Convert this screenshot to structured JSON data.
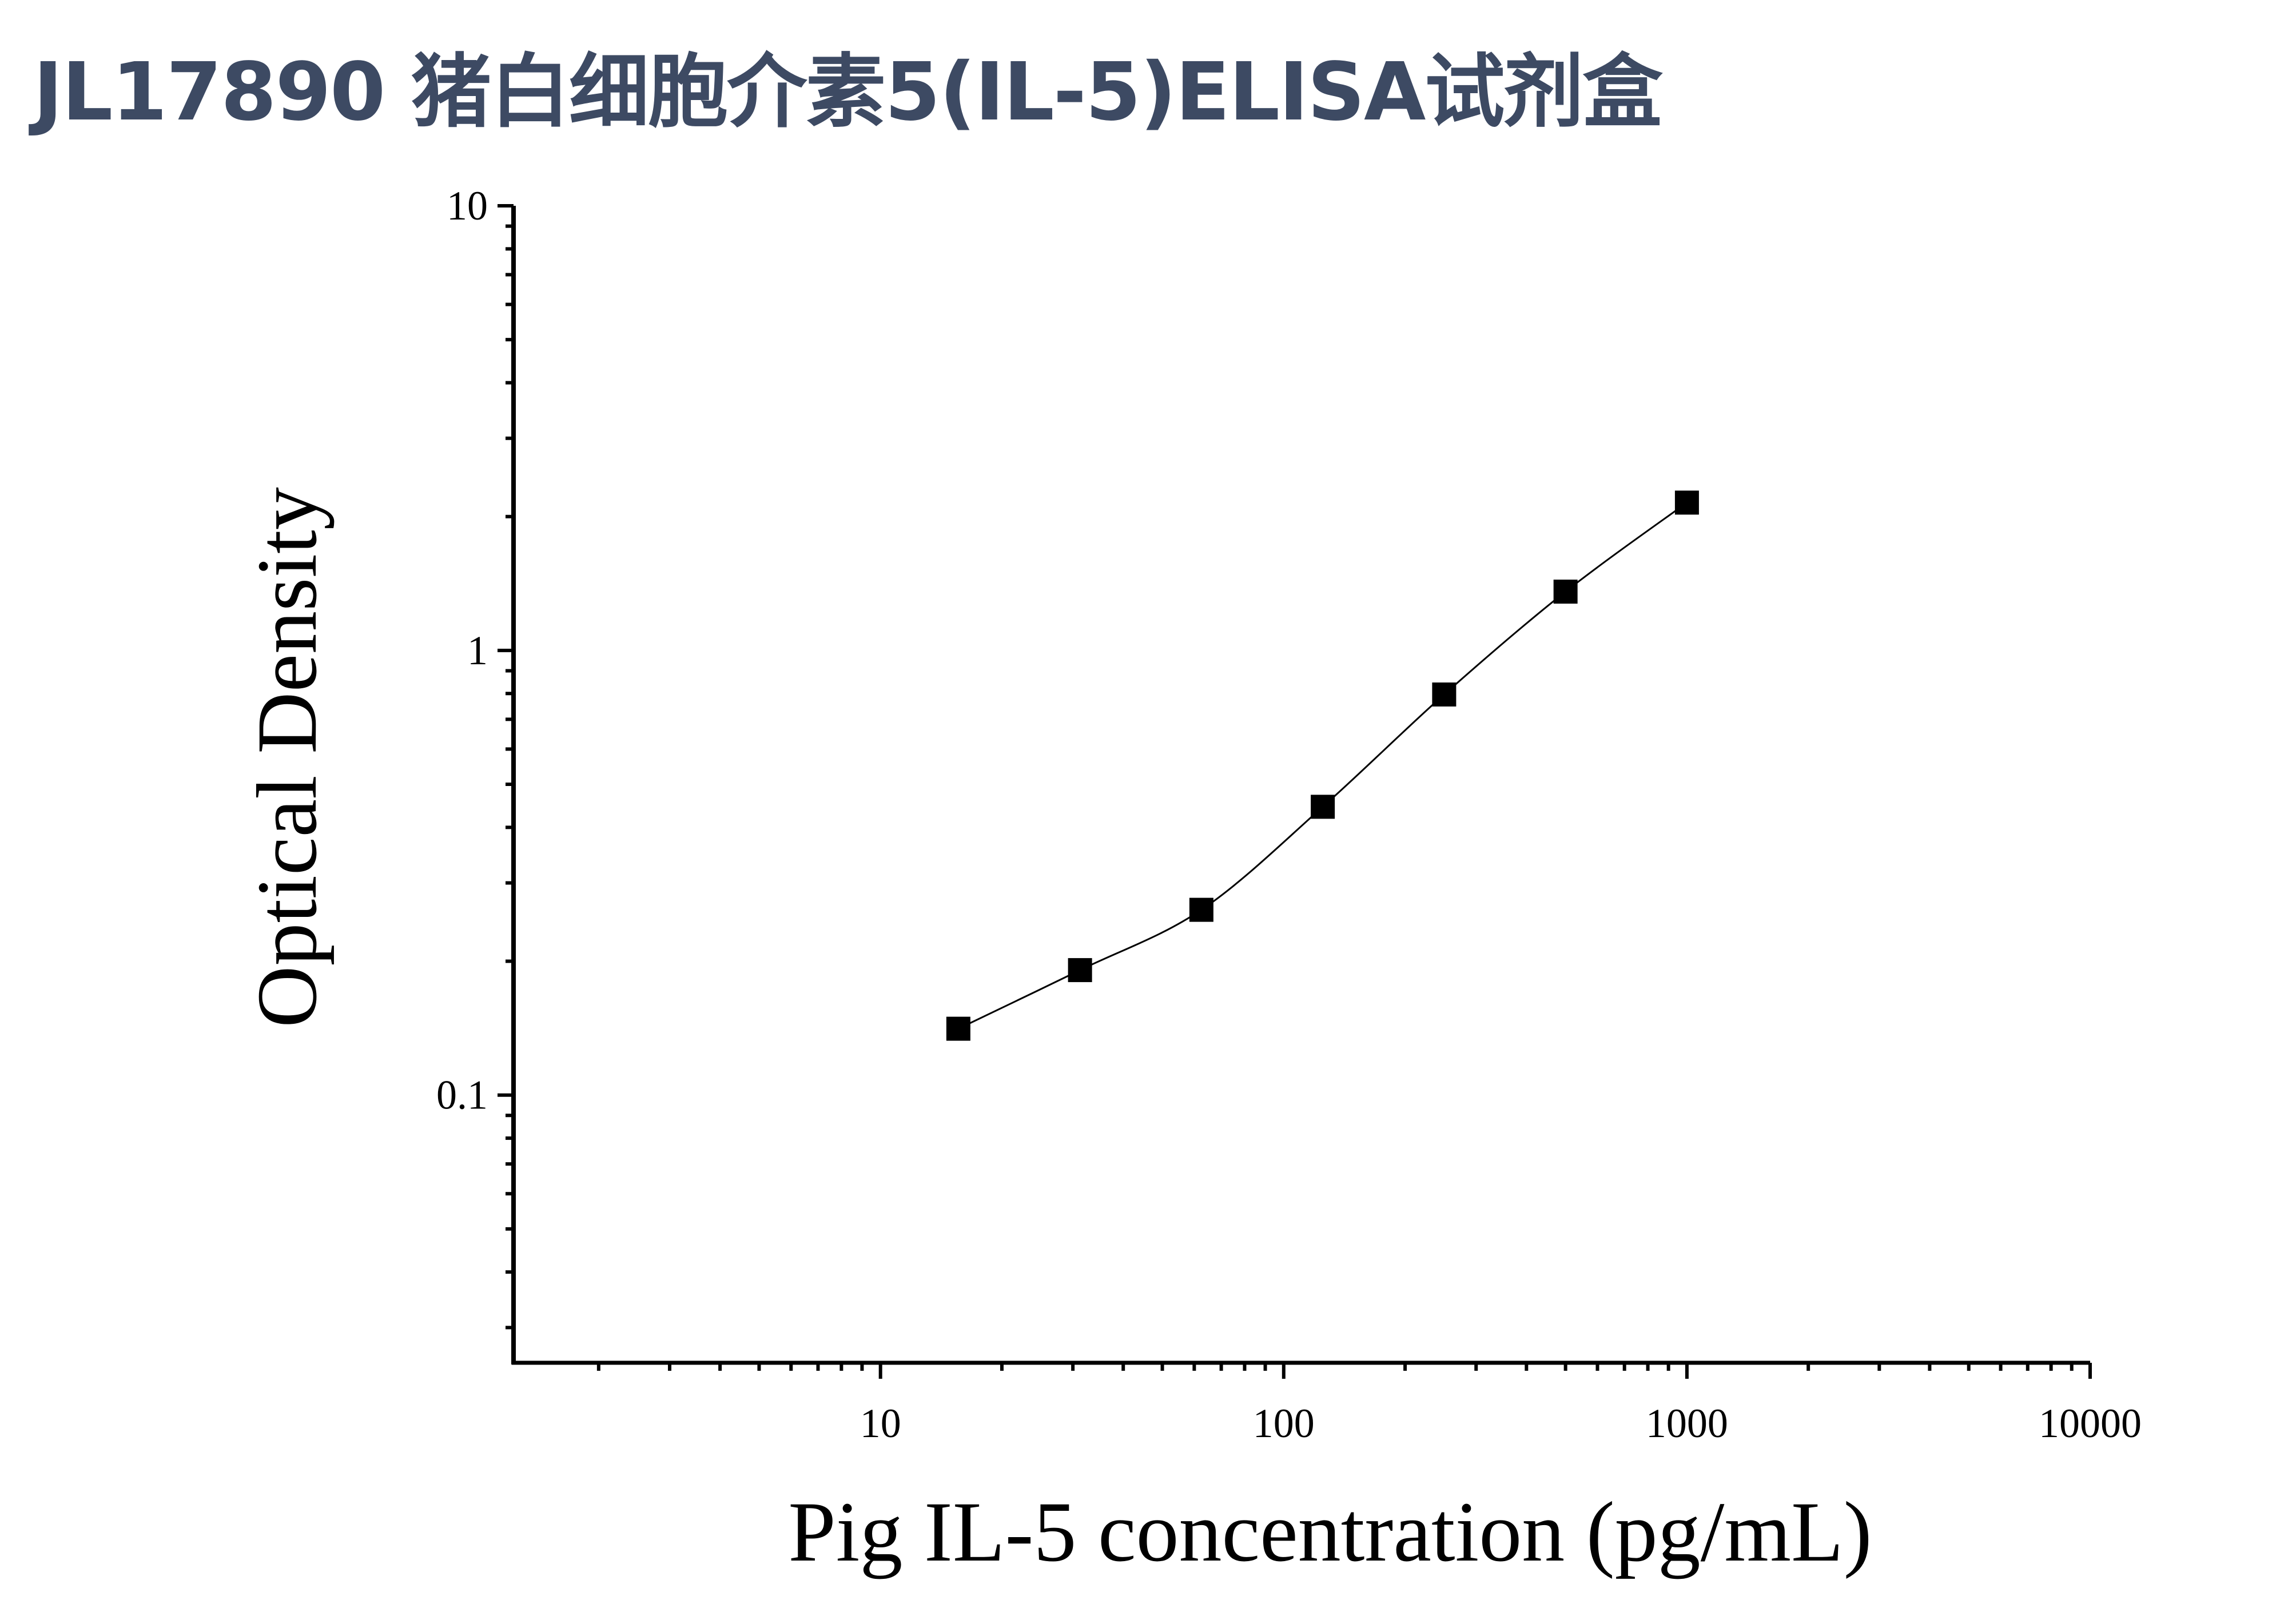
{
  "title": "JL17890 猪白细胞介素5(IL-5)ELISA试剂盒",
  "chart_data": {
    "type": "scatter",
    "title": "JL17890 猪白细胞介素5(IL-5)ELISA试剂盒",
    "xlabel": "Pig IL-5 concentration (pg/mL)",
    "ylabel": "Optical Density",
    "xscale": "log",
    "yscale": "log",
    "xlim": [
      1.23,
      10000
    ],
    "ylim": [
      0.025,
      10
    ],
    "xticks": [
      10,
      100,
      1000,
      10000
    ],
    "xtick_labels": [
      "10",
      "100",
      "1000",
      "10000"
    ],
    "yticks": [
      0.1,
      1,
      10
    ],
    "ytick_labels": [
      "0.1",
      "1",
      "10"
    ],
    "grid": false,
    "legend": "none",
    "marker": "square",
    "line": "smooth curve through points",
    "color": "#000000",
    "x": [
      15.6,
      31.25,
      62.5,
      125,
      250,
      500,
      1000
    ],
    "y": [
      0.141,
      0.191,
      0.261,
      0.445,
      0.796,
      1.356,
      2.15
    ]
  }
}
